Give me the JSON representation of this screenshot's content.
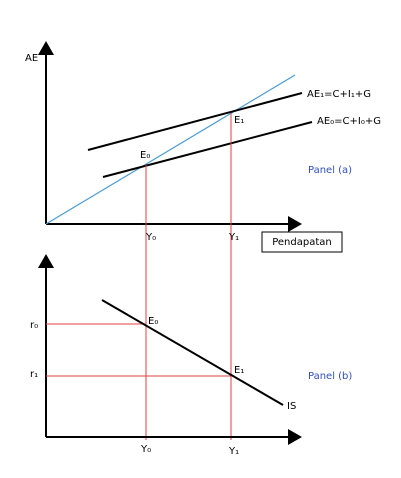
{
  "panel_a": {
    "axis_label": "AE",
    "line_upper_label": "AE₁=C+I₁+G",
    "line_lower_label": "AE₀=C+I₀+G",
    "point_0": "E₀",
    "point_1": "E₁",
    "x_label_0": "Y₀",
    "x_label_1": "Y₁",
    "x_axis_label": "Pendapatan",
    "panel_label": "Panel (a)"
  },
  "panel_b": {
    "y_label_0": "r₀",
    "y_label_1": "r₁",
    "point_0": "E₀",
    "point_1": "E₁",
    "curve_label": "IS",
    "x_label_0": "Y₀",
    "x_label_1": "Y₁",
    "panel_label": "Panel (b)"
  }
}
